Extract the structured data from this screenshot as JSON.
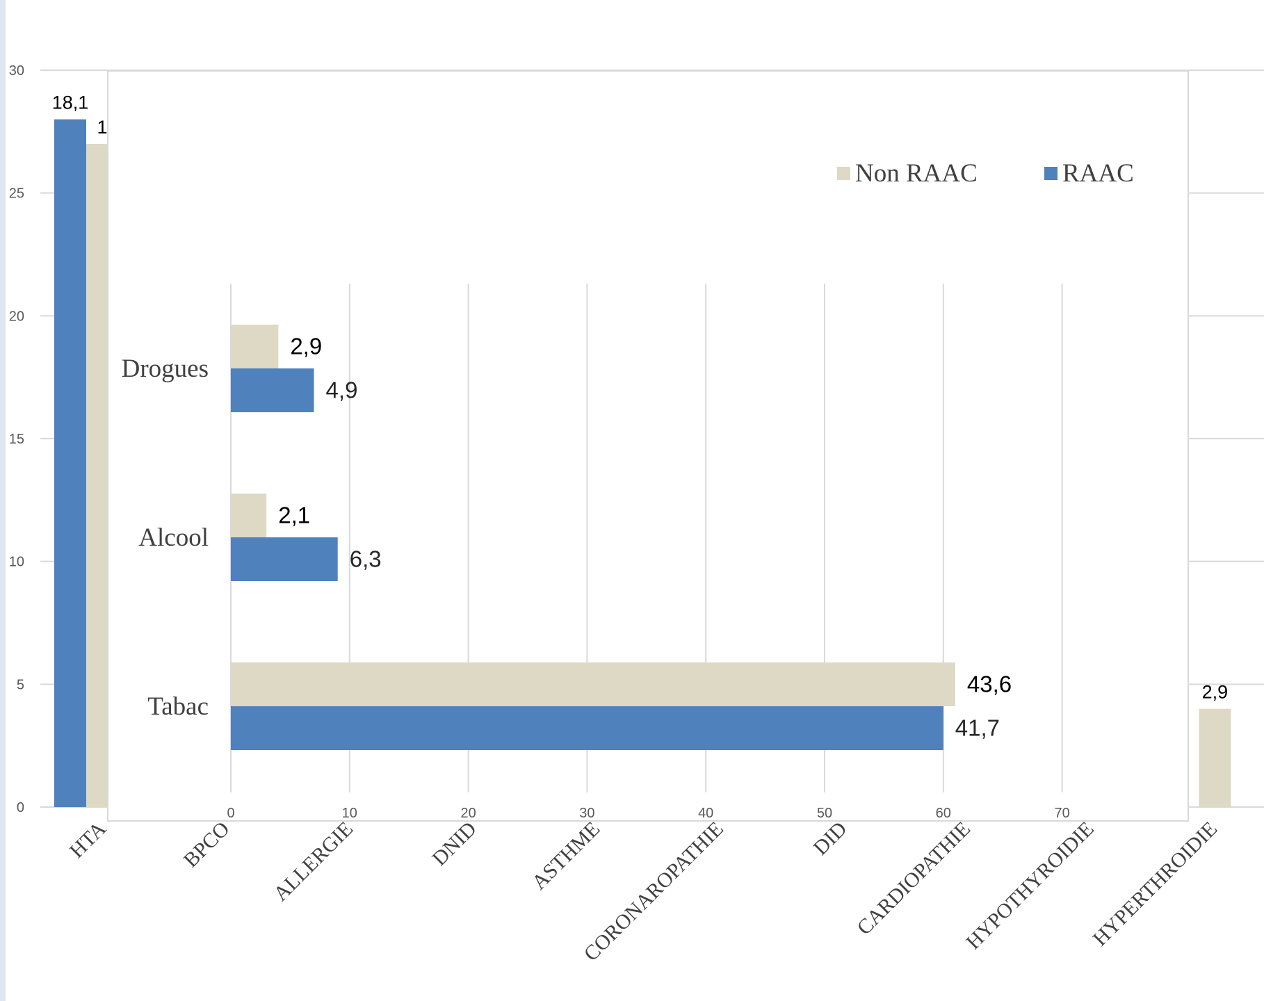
{
  "colors": {
    "raac": "#4f81bd",
    "non_raac": "#ddd9c4",
    "grid": "#d9d9d9",
    "axis_text": "#595959",
    "cat_text": "#404040"
  },
  "chart_data": [
    {
      "type": "bar",
      "orientation": "vertical",
      "categories": [
        "HTA",
        "BPCO",
        "ALLERGIE",
        "DNID",
        "ASTHME",
        "CORONAROPATHIE",
        "DID",
        "CARDIOPATHIE",
        "HYPOTHYROIDIE",
        "HYPERTHROIDIE"
      ],
      "y_ticks": [
        "0",
        "5",
        "10",
        "15",
        "20",
        "25",
        "30"
      ],
      "ylim": [
        0,
        30
      ],
      "grid": true,
      "series": [
        {
          "name": "RAAC",
          "color": "#4f81bd",
          "values": [
            28,
            null,
            null,
            null,
            null,
            null,
            null,
            null,
            null,
            null
          ],
          "labels": [
            "18,1",
            "",
            "",
            "",
            "",
            "",
            "",
            "",
            "",
            ""
          ]
        },
        {
          "name": "Non RAAC",
          "color": "#ddd9c4",
          "values": [
            27,
            null,
            null,
            null,
            null,
            null,
            null,
            null,
            null,
            4
          ],
          "labels": [
            "1",
            "",
            "",
            "",
            "",
            "",
            "",
            "",
            "",
            "2,9"
          ]
        }
      ]
    },
    {
      "type": "bar",
      "orientation": "horizontal",
      "categories": [
        "Drogues",
        "Alcool",
        "Tabac"
      ],
      "x_ticks": [
        "0",
        "10",
        "20",
        "30",
        "40",
        "50",
        "60",
        "70"
      ],
      "xlim": [
        0,
        80
      ],
      "grid": true,
      "legend": {
        "position": "top-right",
        "items": [
          "Non RAAC",
          "RAAC"
        ]
      },
      "series": [
        {
          "name": "Non RAAC",
          "color": "#ddd9c4",
          "values": [
            4,
            3,
            61
          ],
          "labels": [
            "2,9",
            "2,1",
            "43,6"
          ]
        },
        {
          "name": "RAAC",
          "color": "#4f81bd",
          "values": [
            7,
            9,
            60
          ],
          "labels": [
            "4,9",
            "6,3",
            "41,7"
          ]
        }
      ]
    }
  ]
}
